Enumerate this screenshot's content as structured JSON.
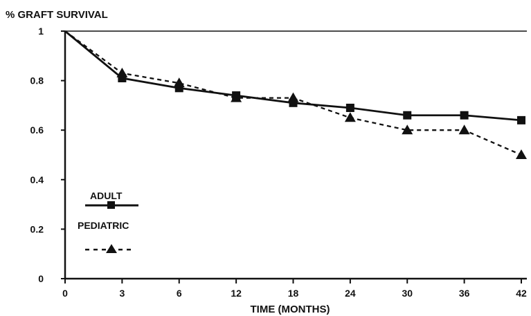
{
  "chart_data": {
    "type": "line",
    "ylabel": "% GRAFT SURVIVAL",
    "xlabel": "TIME (MONTHS)",
    "x": [
      0,
      3,
      6,
      12,
      18,
      24,
      30,
      36,
      42
    ],
    "x_tick_labels": [
      "0",
      "3",
      "6",
      "12",
      "18",
      "24",
      "30",
      "36",
      "42"
    ],
    "y_ticks": [
      0,
      0.2,
      0.4,
      0.6,
      0.8,
      1
    ],
    "y_tick_labels": [
      "0",
      "0.2",
      "0.4",
      "0.6",
      "0.8",
      "1"
    ],
    "ylim": [
      0,
      1
    ],
    "grid": false,
    "legend_position": "left",
    "series": [
      {
        "name": "ADULT",
        "line_style": "solid",
        "marker": "square",
        "values": [
          1.0,
          0.81,
          0.77,
          0.74,
          0.71,
          0.69,
          0.66,
          0.66,
          0.64
        ]
      },
      {
        "name": "PEDIATRIC",
        "line_style": "dashed",
        "marker": "triangle",
        "values": [
          1.0,
          0.83,
          0.79,
          0.73,
          0.73,
          0.65,
          0.6,
          0.6,
          0.5
        ]
      }
    ],
    "colors": {
      "ink": "#111111",
      "background": "#ffffff"
    }
  }
}
